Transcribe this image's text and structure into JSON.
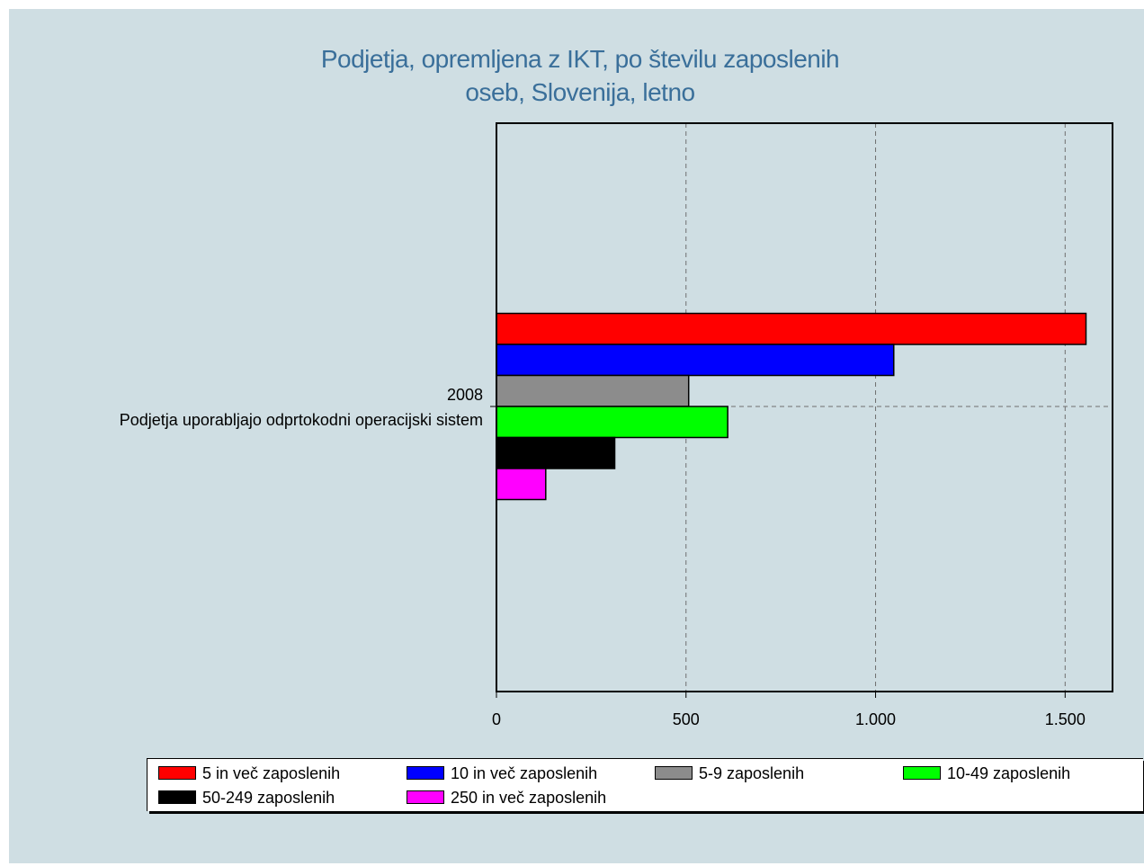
{
  "chart_data": {
    "type": "bar",
    "orientation": "horizontal",
    "title": "Podjetja, opremljena z IKT, po številu zaposlenih oseb, Slovenija, letno",
    "title_lines": [
      "Podjetja, opremljena z IKT, po številu zaposlenih",
      "oseb, Slovenija, letno"
    ],
    "category_labels": [
      "2008",
      "Podjetja uporabljajo odprtokodni operacijski sistem"
    ],
    "x_ticks": [
      "0",
      "500",
      "1.000",
      "1.500"
    ],
    "x_tick_values": [
      0,
      500,
      1000,
      1500
    ],
    "xlim": [
      0,
      1625
    ],
    "grid": true,
    "legend_position": "bottom",
    "series": [
      {
        "name": "5 in več zaposlenih",
        "value": 1555,
        "color": "#ff0000"
      },
      {
        "name": "10 in več zaposlenih",
        "value": 1048,
        "color": "#0000ff"
      },
      {
        "name": "5-9 zaposlenih",
        "value": 507,
        "color": "#8c8c8c"
      },
      {
        "name": "10-49 zaposlenih",
        "value": 610,
        "color": "#00ff00"
      },
      {
        "name": "50-249 zaposlenih",
        "value": 312,
        "color": "#000000"
      },
      {
        "name": "250 in več zaposlenih",
        "value": 130,
        "color": "#ff00ff"
      }
    ]
  }
}
